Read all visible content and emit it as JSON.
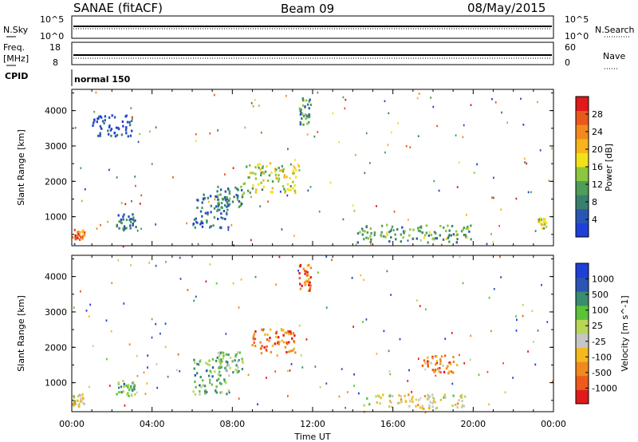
{
  "header": {
    "station": "SANAE (fitACF)",
    "beam": "Beam 09",
    "date": "08/May/2015"
  },
  "strip_noise": {
    "left_label": "N.Sky",
    "right_label": "N.Search",
    "left_ticks": [
      "10^5",
      "10^0"
    ],
    "right_ticks": [
      "10^5",
      "10^0"
    ]
  },
  "strip_freq": {
    "left_label": "Freq.",
    "left_unit": "[MHz]",
    "right_label": "Nave",
    "left_ticks": [
      "18",
      "8"
    ],
    "right_ticks": [
      "60",
      "0"
    ]
  },
  "cpid": {
    "label": "CPID",
    "value": "normal 150"
  },
  "x_axis": {
    "label": "Time UT",
    "ticks": [
      "00:00",
      "04:00",
      "08:00",
      "12:00",
      "16:00",
      "20:00",
      "00:00"
    ]
  },
  "colors": {
    "frame": "#000000",
    "power_scale": [
      "#1f3fd9",
      "#2956b5",
      "#3a7f6e",
      "#4e9d58",
      "#8dc63f",
      "#f2e21a",
      "#f7b41c",
      "#f08a1e",
      "#e85a1c",
      "#e01a1a"
    ],
    "velocity_scale": [
      "#e01a1a",
      "#ee5a1c",
      "#f08a1e",
      "#f5b81f",
      "#c6c6c6",
      "#b8d65a",
      "#5cc23a",
      "#3a8c6e",
      "#2a55b4",
      "#1f3fd9"
    ]
  },
  "chart_data": [
    {
      "type": "heatmap",
      "name": "power",
      "xlabel": "",
      "ylabel": "Slant Range [km]",
      "xlim": [
        0,
        24
      ],
      "ylim": [
        180,
        4600
      ],
      "yticks": [
        "1000",
        "2000",
        "3000",
        "4000"
      ],
      "colorbar": {
        "label": "Power [dB]",
        "ticks": [
          "28",
          "24",
          "20",
          "16",
          "12",
          "8",
          "4"
        ],
        "range": [
          0,
          32
        ]
      },
      "regions": [
        {
          "x": [
            0.0,
            0.6
          ],
          "y": [
            350,
            700
          ],
          "level": 0.8
        },
        {
          "x": [
            2.2,
            3.2
          ],
          "y": [
            650,
            1100
          ],
          "level": 0.2
        },
        {
          "x": [
            6.0,
            7.8
          ],
          "y": [
            700,
            1700
          ],
          "level": 0.2
        },
        {
          "x": [
            7.2,
            8.5
          ],
          "y": [
            1300,
            1900
          ],
          "level": 0.3
        },
        {
          "x": [
            8.5,
            11.3
          ],
          "y": [
            1700,
            2550
          ],
          "level": 0.5
        },
        {
          "x": [
            14.2,
            20.0
          ],
          "y": [
            300,
            800
          ],
          "level": 0.35
        },
        {
          "x": [
            11.3,
            11.9
          ],
          "y": [
            3600,
            4400
          ],
          "level": 0.3
        },
        {
          "x": [
            1.0,
            3.0
          ],
          "y": [
            3300,
            3900
          ],
          "level": 0.1
        },
        {
          "x": [
            23.2,
            23.6
          ],
          "y": [
            700,
            1000
          ],
          "level": 0.5
        }
      ]
    },
    {
      "type": "heatmap",
      "name": "velocity",
      "xlabel": "Time UT",
      "ylabel": "Slant Range [km]",
      "xlim": [
        0,
        24
      ],
      "ylim": [
        180,
        4600
      ],
      "yticks": [
        "1000",
        "2000",
        "3000",
        "4000"
      ],
      "colorbar": {
        "label": "Velocity [m s^-1]",
        "ticks": [
          "1000",
          "500",
          "100",
          "25",
          "-25",
          "-100",
          "-500",
          "-1000"
        ]
      },
      "regions": [
        {
          "x": [
            0.0,
            0.6
          ],
          "y": [
            350,
            700
          ],
          "level": 0.45
        },
        {
          "x": [
            2.2,
            3.2
          ],
          "y": [
            650,
            1100
          ],
          "level": 0.65
        },
        {
          "x": [
            6.0,
            7.8
          ],
          "y": [
            700,
            1700
          ],
          "level": 0.65
        },
        {
          "x": [
            7.2,
            8.5
          ],
          "y": [
            1300,
            1900
          ],
          "level": 0.6
        },
        {
          "x": [
            8.8,
            11.1
          ],
          "y": [
            1800,
            2550
          ],
          "level": 0.2
        },
        {
          "x": [
            14.5,
            19.6
          ],
          "y": [
            300,
            700
          ],
          "level": 0.45
        },
        {
          "x": [
            17.4,
            19.2
          ],
          "y": [
            1300,
            1800
          ],
          "level": 0.25
        },
        {
          "x": [
            11.3,
            11.9
          ],
          "y": [
            3600,
            4400
          ],
          "level": 0.2
        }
      ]
    }
  ]
}
